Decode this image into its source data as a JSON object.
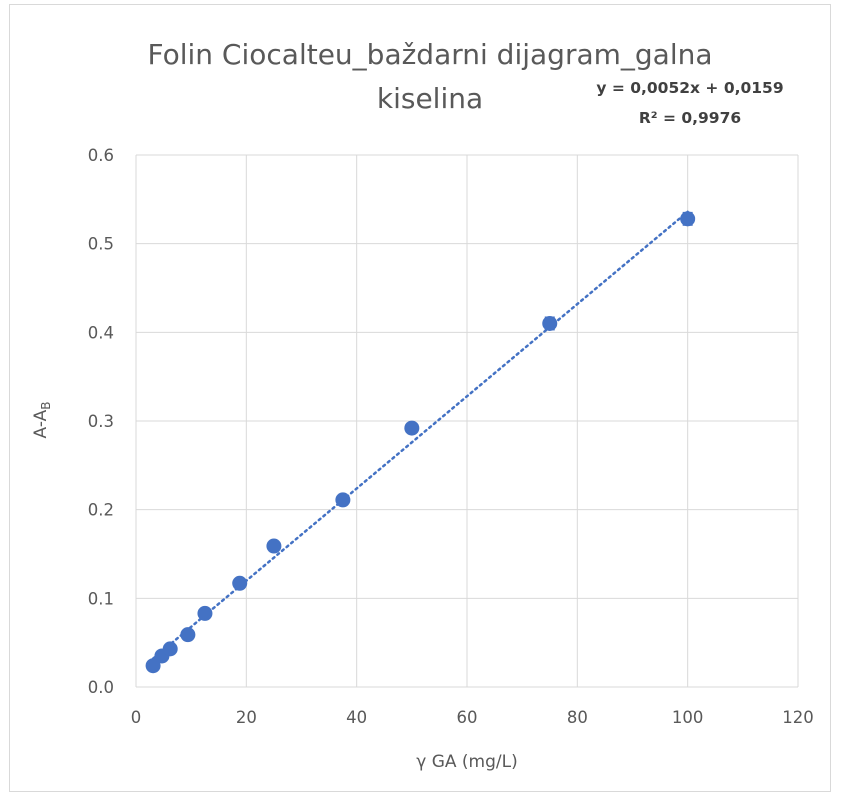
{
  "chart_data": {
    "type": "scatter",
    "title_line1": "Folin Ciocalteu_baždarni dijagram_galna",
    "title_line2": "kiselina",
    "xlabel": "γ GA (mg/L)",
    "ylabel_main": "A-A",
    "ylabel_sub": "B",
    "xlim": [
      0,
      120
    ],
    "ylim": [
      0.0,
      0.6
    ],
    "xticks": [
      "0",
      "20",
      "40",
      "60",
      "80",
      "100",
      "120"
    ],
    "yticks": [
      "0.0",
      "0.1",
      "0.2",
      "0.3",
      "0.4",
      "0.5",
      "0.6"
    ],
    "grid": true,
    "series": [
      {
        "x": [
          3.1,
          4.7,
          6.2,
          9.4,
          12.5,
          18.8,
          25,
          37.5,
          50,
          75,
          100
        ],
        "y": [
          0.024,
          0.035,
          0.043,
          0.059,
          0.083,
          0.117,
          0.159,
          0.211,
          0.292,
          0.41,
          0.528
        ],
        "error": [
          0.002,
          0.002,
          0.002,
          0.002,
          0.002,
          0.003,
          0.003,
          0.003,
          0.003,
          0.007,
          0.007
        ]
      }
    ],
    "trendline": {
      "type": "linear",
      "slope": 0.0052,
      "intercept": 0.0159,
      "equation": "y = 0,0052x + 0,0159",
      "r_squared": "R² = 0,9976",
      "style": "dotted"
    },
    "colors": {
      "marker": "#4472c4",
      "grid": "#d9d9d9",
      "text": "#595959"
    }
  }
}
